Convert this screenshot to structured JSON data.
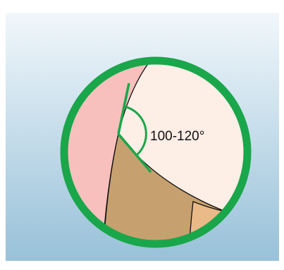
{
  "angle_label": "100-120°"
}
